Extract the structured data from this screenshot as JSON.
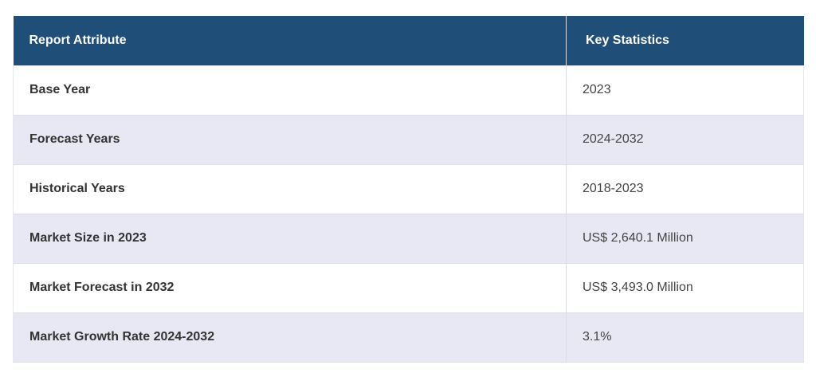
{
  "table": {
    "headers": [
      "Report Attribute",
      "Key Statistics"
    ],
    "rows": [
      [
        "Base Year",
        "2023"
      ],
      [
        "Forecast Years",
        "2024-2032"
      ],
      [
        "Historical Years",
        "2018-2023"
      ],
      [
        "Market Size in 2023",
        "US$ 2,640.1 Million"
      ],
      [
        "Market Forecast in 2032",
        "US$ 3,493.0 Million"
      ],
      [
        "Market Growth Rate 2024-2032",
        "3.1%"
      ]
    ]
  },
  "colors": {
    "header_bg": "#1f4e79",
    "header_text": "#ffffff",
    "stripe_bg": "#e7e8f4"
  }
}
